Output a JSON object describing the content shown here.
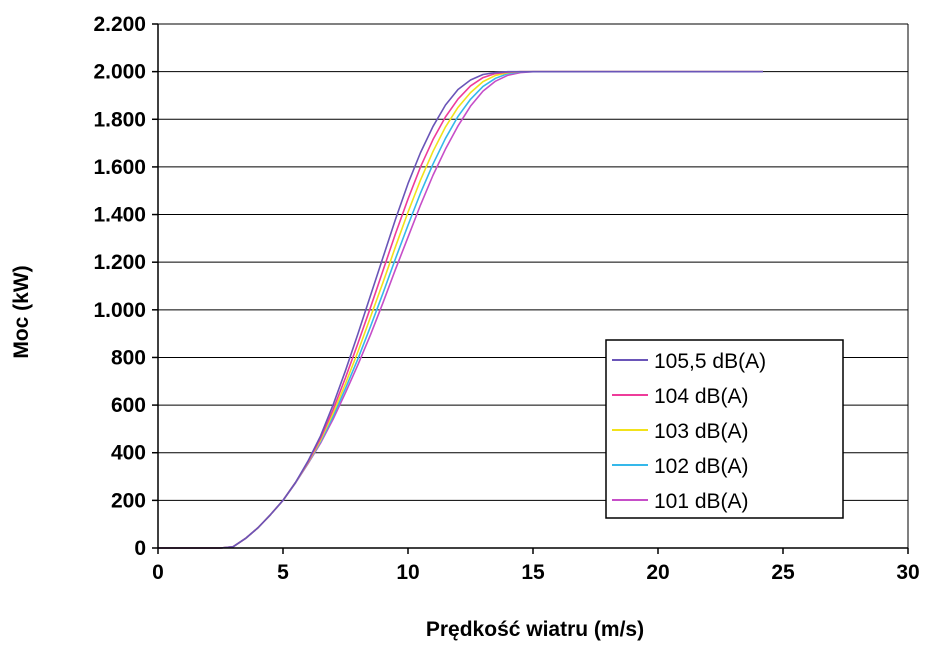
{
  "chart_data": {
    "type": "line",
    "title": "",
    "xlabel": "Prędkość wiatru (m/s)",
    "ylabel": "Moc (kW)",
    "xlim": [
      0,
      30
    ],
    "ylim": [
      0,
      2200
    ],
    "x_ticks": [
      0,
      5,
      10,
      15,
      20,
      25,
      30
    ],
    "x_tick_labels": [
      "0",
      "5",
      "10",
      "15",
      "20",
      "25",
      "30"
    ],
    "y_ticks": [
      0,
      200,
      400,
      600,
      800,
      1000,
      1200,
      1400,
      1600,
      1800,
      2000,
      2200
    ],
    "y_tick_labels": [
      "0",
      "200",
      "400",
      "600",
      "800",
      "1.000",
      "1.200",
      "1.400",
      "1.600",
      "1.800",
      "2.000",
      "2.200"
    ],
    "grid": "horizontal",
    "legend_position": "bottom-right",
    "x": [
      0,
      1,
      2,
      2.5,
      3,
      3.5,
      4,
      4.5,
      5,
      5.5,
      6,
      6.5,
      7,
      7.5,
      8,
      8.5,
      9,
      9.5,
      10,
      10.5,
      11,
      11.5,
      12,
      12.5,
      13,
      13.5,
      14,
      14.5,
      15,
      16,
      18,
      20,
      22,
      24.2
    ],
    "series": [
      {
        "name": "105,5 dB(A)",
        "color": "#6a55b8",
        "values": [
          0,
          0,
          0,
          0,
          5,
          40,
          85,
          140,
          200,
          275,
          365,
          470,
          600,
          745,
          900,
          1060,
          1220,
          1380,
          1530,
          1660,
          1770,
          1860,
          1925,
          1965,
          1988,
          1996,
          2000,
          2000,
          2000,
          2000,
          2000,
          2000,
          2000,
          2000
        ]
      },
      {
        "name": "104 dB(A)",
        "color": "#ee3c9a",
        "values": [
          0,
          0,
          0,
          0,
          5,
          40,
          85,
          140,
          200,
          275,
          360,
          460,
          580,
          715,
          860,
          1010,
          1165,
          1320,
          1465,
          1600,
          1715,
          1810,
          1885,
          1940,
          1975,
          1992,
          1998,
          2000,
          2000,
          2000,
          2000,
          2000,
          2000,
          2000
        ]
      },
      {
        "name": "103 dB(A)",
        "color": "#f2e21a",
        "values": [
          0,
          0,
          0,
          0,
          5,
          40,
          85,
          140,
          200,
          275,
          358,
          452,
          565,
          690,
          825,
          970,
          1115,
          1265,
          1410,
          1545,
          1665,
          1768,
          1850,
          1912,
          1958,
          1984,
          1996,
          2000,
          2000,
          2000,
          2000,
          2000,
          2000,
          2000
        ]
      },
      {
        "name": "102 dB(A)",
        "color": "#35b8ea",
        "values": [
          0,
          0,
          0,
          0,
          5,
          40,
          85,
          140,
          200,
          274,
          356,
          446,
          552,
          670,
          795,
          930,
          1070,
          1215,
          1355,
          1490,
          1612,
          1720,
          1812,
          1884,
          1938,
          1972,
          1992,
          1999,
          2000,
          2000,
          2000,
          2000,
          2000,
          2000
        ]
      },
      {
        "name": "101 dB(A)",
        "color": "#c64ec8",
        "values": [
          0,
          0,
          0,
          0,
          5,
          40,
          85,
          140,
          200,
          273,
          354,
          440,
          540,
          652,
          770,
          895,
          1030,
          1170,
          1305,
          1440,
          1565,
          1675,
          1772,
          1855,
          1918,
          1960,
          1985,
          1996,
          2000,
          2000,
          2000,
          2000,
          2000,
          2000
        ]
      }
    ]
  }
}
